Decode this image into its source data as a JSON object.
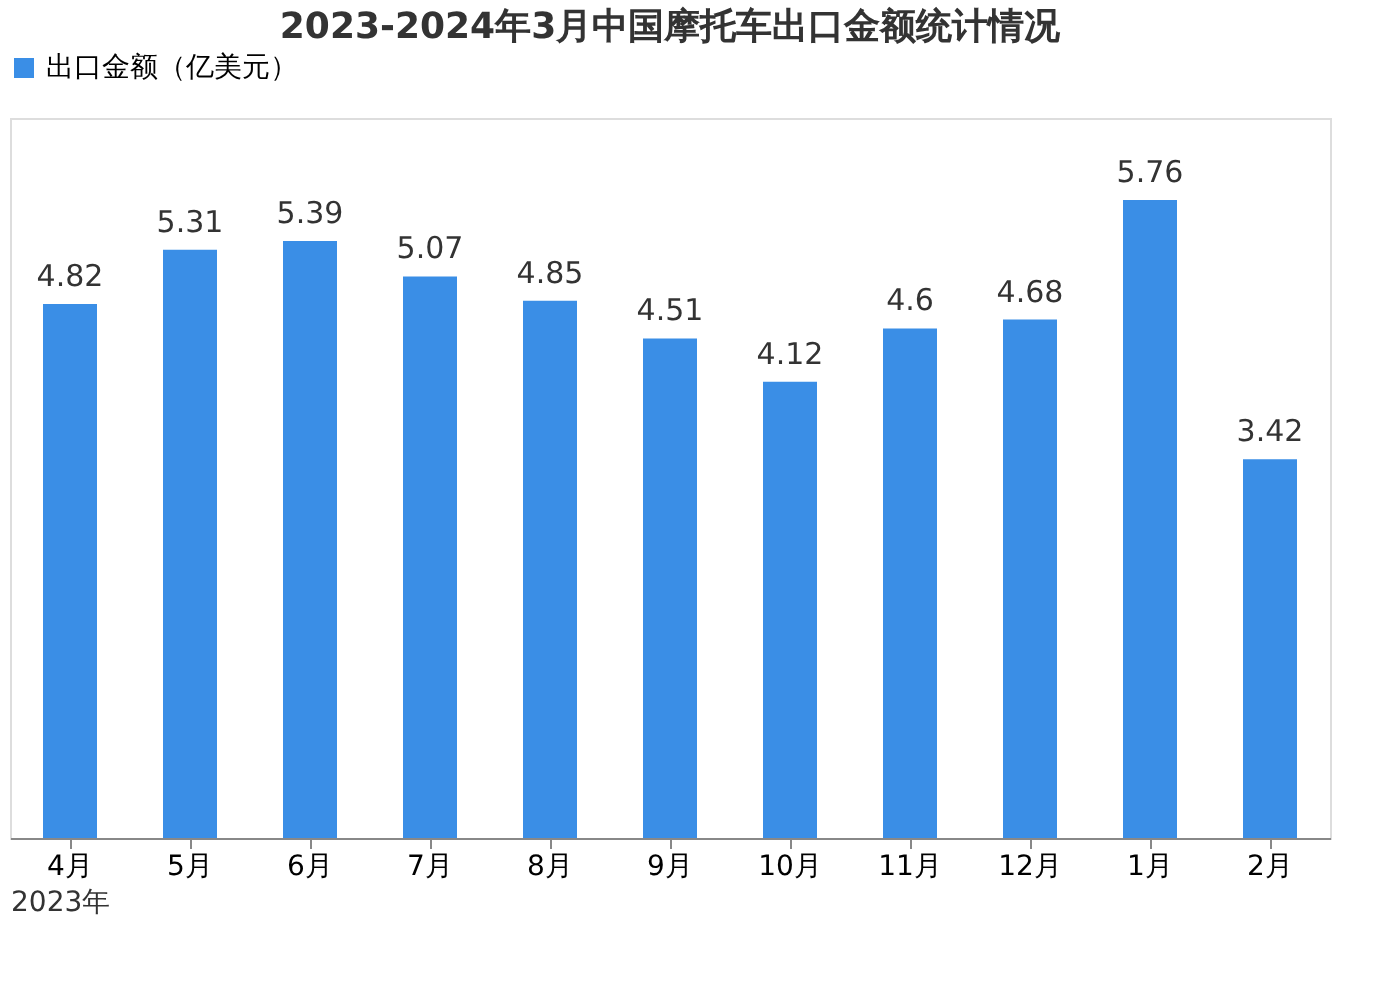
{
  "chart_data": {
    "type": "bar",
    "title": "2023-2024年3月中国摩托车出口金额统计情况",
    "categories": [
      "4月",
      "5月",
      "6月",
      "7月",
      "8月",
      "9月",
      "10月",
      "11月",
      "12月",
      "1月",
      "2月"
    ],
    "series": [
      {
        "name": "出口金额（亿美元）",
        "color": "#3a8ee6",
        "values": [
          4.82,
          5.31,
          5.39,
          5.07,
          4.85,
          4.51,
          4.12,
          4.6,
          4.68,
          5.76,
          3.42
        ]
      }
    ],
    "ylim": [
      0,
      6.5
    ],
    "tick_labels": "x",
    "data_labels": true,
    "legend": "top",
    "grid": false,
    "annotations": [
      "2023年"
    ]
  }
}
